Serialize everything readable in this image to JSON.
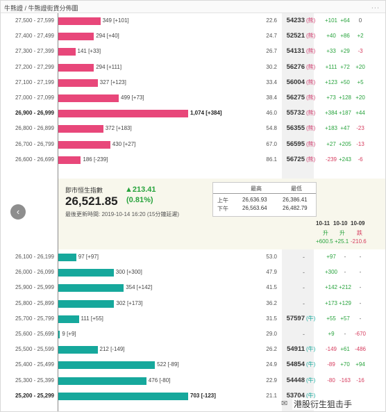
{
  "window": {
    "title": "牛熊證 / 牛熊證街貨分佈圖",
    "menu_glyph": "..."
  },
  "bull_rows": [
    {
      "range": "27,500 - 27,599",
      "amount": "349 [+101]",
      "bar_frac": 0.324,
      "pct": "22.6",
      "code": "54233",
      "tag": "(熊)",
      "c1": "+101",
      "c2": "+64",
      "c3": "0",
      "bold": false
    },
    {
      "range": "27,400 - 27,499",
      "amount": "294 [+40]",
      "bar_frac": 0.274,
      "pct": "24.7",
      "code": "52521",
      "tag": "(熊)",
      "c1": "+40",
      "c2": "+86",
      "c3": "+2",
      "bold": false
    },
    {
      "range": "27,300 - 27,399",
      "amount": "141 [+33]",
      "bar_frac": 0.131,
      "pct": "26.7",
      "code": "54131",
      "tag": "(熊)",
      "c1": "+33",
      "c2": "+29",
      "c3": "-3",
      "bold": false
    },
    {
      "range": "27,200 - 27,299",
      "amount": "294 [+111]",
      "bar_frac": 0.274,
      "pct": "30.2",
      "code": "56276",
      "tag": "(熊)",
      "c1": "+111",
      "c2": "+72",
      "c3": "+20",
      "bold": false
    },
    {
      "range": "27,100 - 27,199",
      "amount": "327 [+123]",
      "bar_frac": 0.304,
      "pct": "33.4",
      "code": "56004",
      "tag": "(熊)",
      "c1": "+123",
      "c2": "+50",
      "c3": "+5",
      "bold": false
    },
    {
      "range": "27,000 - 27,099",
      "amount": "499 [+73]",
      "bar_frac": 0.465,
      "pct": "38.4",
      "code": "56275",
      "tag": "(熊)",
      "c1": "+73",
      "c2": "+128",
      "c3": "+20",
      "bold": false
    },
    {
      "range": "26,900 - 26,999",
      "amount": "1,074 [+384]",
      "bar_frac": 1.0,
      "pct": "46.0",
      "code": "55732",
      "tag": "(熊)",
      "c1": "+384",
      "c2": "+187",
      "c3": "+44",
      "bold": true
    },
    {
      "range": "26,800 - 26,899",
      "amount": "372 [+183]",
      "bar_frac": 0.346,
      "pct": "54.8",
      "code": "56355",
      "tag": "(熊)",
      "c1": "+183",
      "c2": "+47",
      "c3": "-23",
      "bold": false
    },
    {
      "range": "26,700 - 26,799",
      "amount": "430 [+27]",
      "bar_frac": 0.4,
      "pct": "67.0",
      "code": "56595",
      "tag": "(熊)",
      "c1": "+27",
      "c2": "+205",
      "c3": "-13",
      "bold": false
    },
    {
      "range": "26,600 - 26,699",
      "amount": "186 [-239]",
      "bar_frac": 0.173,
      "pct": "86.1",
      "code": "56725",
      "tag": "(熊)",
      "c1": "-239",
      "c2": "+243",
      "c3": "-6",
      "bold": false
    }
  ],
  "info": {
    "index_label": "即市恒生指數",
    "index_value": "26,521.85",
    "change": "▲213.41",
    "change_pct": "(0.81%)",
    "updated": "最後更新時間: 2019-10-14 16:20 (15分鐘延遲)",
    "hl": {
      "col_high": "最高",
      "col_low": "最低",
      "am_label": "上午",
      "am_high": "26,636.93",
      "am_low": "26,386.41",
      "pm_label": "下午",
      "pm_high": "26,563.64",
      "pm_low": "26,482.79"
    },
    "dates": [
      {
        "date": "10-11",
        "dir": "升",
        "val": "+600.5"
      },
      {
        "date": "10-10",
        "dir": "升",
        "val": "+25.1"
      },
      {
        "date": "10-09",
        "dir": "跌",
        "val": "-210.6"
      }
    ]
  },
  "bear_rows": [
    {
      "range": "26,100 - 26,199",
      "amount": "97 [+97]",
      "bar_frac": 0.138,
      "pct": "53.0",
      "code": "-",
      "tag": "",
      "c1": "+97",
      "c2": "-",
      "c3": "-",
      "bold": false
    },
    {
      "range": "26,000 - 26,099",
      "amount": "300 [+300]",
      "bar_frac": 0.427,
      "pct": "47.9",
      "code": "-",
      "tag": "",
      "c1": "+300",
      "c2": "-",
      "c3": "-",
      "bold": false
    },
    {
      "range": "25,900 - 25,999",
      "amount": "354 [+142]",
      "bar_frac": 0.504,
      "pct": "41.5",
      "code": "-",
      "tag": "",
      "c1": "+142",
      "c2": "+212",
      "c3": "-",
      "bold": false
    },
    {
      "range": "25,800 - 25,899",
      "amount": "302 [+173]",
      "bar_frac": 0.43,
      "pct": "36.2",
      "code": "-",
      "tag": "",
      "c1": "+173",
      "c2": "+129",
      "c3": "-",
      "bold": false
    },
    {
      "range": "25,700 - 25,799",
      "amount": "111 [+55]",
      "bar_frac": 0.158,
      "pct": "31.5",
      "code": "57597",
      "tag": "(牛)",
      "c1": "+55",
      "c2": "+57",
      "c3": "-",
      "bold": false
    },
    {
      "range": "25,600 - 25,699",
      "amount": "9 [+9]",
      "bar_frac": 0.013,
      "pct": "29.0",
      "code": "-",
      "tag": "",
      "c1": "+9",
      "c2": "-",
      "c3": "-670",
      "bold": false
    },
    {
      "range": "25,500 - 25,599",
      "amount": "212 [-149]",
      "bar_frac": 0.302,
      "pct": "26.2",
      "code": "54911",
      "tag": "(牛)",
      "c1": "-149",
      "c2": "+61",
      "c3": "-486",
      "bold": false
    },
    {
      "range": "25,400 - 25,499",
      "amount": "522 [-89]",
      "bar_frac": 0.744,
      "pct": "24.9",
      "code": "54854",
      "tag": "(牛)",
      "c1": "-89",
      "c2": "+70",
      "c3": "+94",
      "bold": false
    },
    {
      "range": "25,300 - 25,399",
      "amount": "476 [-80]",
      "bar_frac": 0.678,
      "pct": "22.9",
      "code": "54448",
      "tag": "(牛)",
      "c1": "-80",
      "c2": "-163",
      "c3": "-16",
      "bold": false
    },
    {
      "range": "25,200 - 25,299",
      "amount": "703 [-123]",
      "bar_frac": 1.0,
      "pct": "21.1",
      "code": "53704",
      "tag": "(牛)",
      "c1": "",
      "c2": "",
      "c3": "",
      "bold": true
    }
  ],
  "watermark": "港股衍生狙击手",
  "colors": {
    "bull_bar": "#e8477a",
    "bear_bar": "#16a89c",
    "pos": "#27a33c",
    "neg": "#d63c5e"
  }
}
